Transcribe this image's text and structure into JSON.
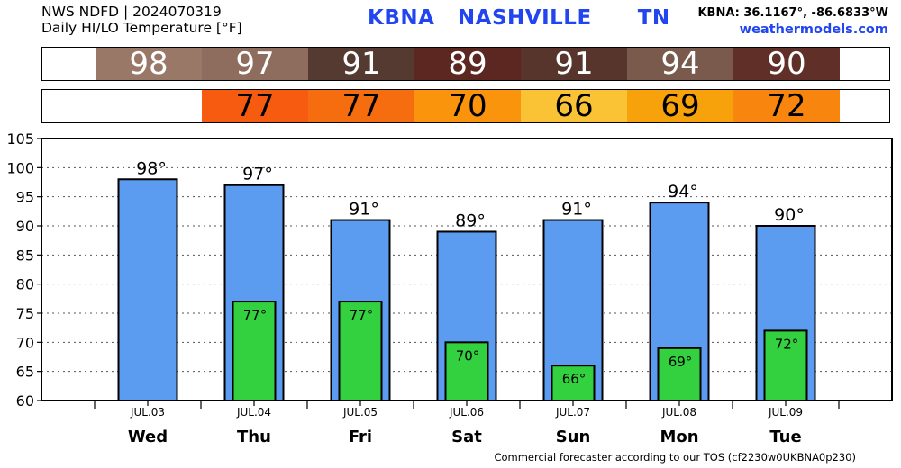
{
  "header": {
    "line1": "NWS NDFD | 2024070319",
    "line2": "Daily HI/LO Temperature [°F]",
    "station_title": "KBNA   NASHVILLE      TN",
    "coords": "KBNA: 36.1167°, -86.6833°W",
    "website": "weathermodels.com"
  },
  "hi_strip": {
    "values": [
      "98",
      "97",
      "91",
      "89",
      "91",
      "94",
      "90"
    ],
    "colors": [
      "#997868",
      "#8e6c5e",
      "#553a31",
      "#5c2720",
      "#57352c",
      "#7a5a4d",
      "#5f2f28"
    ]
  },
  "lo_strip": {
    "values": [
      "77",
      "77",
      "70",
      "66",
      "69",
      "72"
    ],
    "colors": [
      "#f65b10",
      "#f66d0f",
      "#fa940c",
      "#f9c335",
      "#f8a20b",
      "#f8860e"
    ]
  },
  "chart_data": {
    "type": "bar",
    "categories": [
      "JUL.03",
      "JUL.04",
      "JUL.05",
      "JUL.06",
      "JUL.07",
      "JUL.08",
      "JUL.09"
    ],
    "days": [
      "Wed",
      "Thu",
      "Fri",
      "Sat",
      "Sun",
      "Mon",
      "Tue"
    ],
    "series": [
      {
        "values": [
          98,
          97,
          91,
          89,
          91,
          94,
          90
        ],
        "color": "#5b9cf0"
      },
      {
        "values": [
          null,
          77,
          77,
          70,
          66,
          69,
          72
        ],
        "color": "#33d13f"
      }
    ],
    "hi_labels": [
      "98°",
      "97°",
      "91°",
      "89°",
      "91°",
      "94°",
      "90°"
    ],
    "lo_labels": [
      "",
      "77°",
      "77°",
      "70°",
      "66°",
      "69°",
      "72°"
    ],
    "ylim": [
      60,
      105
    ],
    "yticks": [
      60,
      65,
      70,
      75,
      80,
      85,
      90,
      95,
      100,
      105
    ],
    "grid": true
  },
  "footer": "Commercial forecaster according to our TOS (cf2230w0UKBNA0p230)"
}
